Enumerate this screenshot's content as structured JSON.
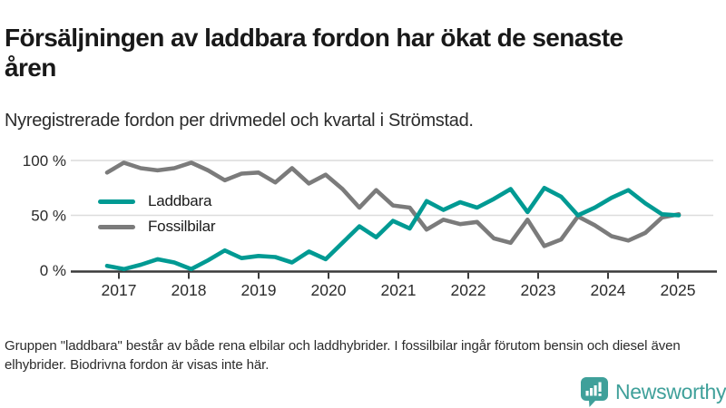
{
  "header": {
    "title": "Försäljningen av laddbara fordon har ökat de senaste åren",
    "subtitle": "Nyregistrerade fordon per drivmedel och kvartal i Strömstad."
  },
  "chart_data": {
    "type": "line",
    "title": "Nyregistrerade fordon per drivmedel och kvartal i Strömstad",
    "xlabel": "",
    "ylabel": "",
    "unit": "percent",
    "ylim": [
      0,
      100
    ],
    "grid": "horizontal-only",
    "legend_position": "inside-top-left",
    "yticks": [
      {
        "value": 100,
        "label": "100 %"
      },
      {
        "value": 50,
        "label": "50 %"
      },
      {
        "value": 0,
        "label": "0 %"
      }
    ],
    "x_tick_labels": [
      "2017",
      "2018",
      "2019",
      "2020",
      "2021",
      "2022",
      "2023",
      "2024",
      "2025"
    ],
    "categories": [
      "2017 Q1",
      "2017 Q2",
      "2017 Q3",
      "2017 Q4",
      "2018 Q1",
      "2018 Q2",
      "2018 Q3",
      "2018 Q4",
      "2019 Q1",
      "2019 Q2",
      "2019 Q3",
      "2019 Q4",
      "2020 Q1",
      "2020 Q2",
      "2020 Q3",
      "2020 Q4",
      "2021 Q1",
      "2021 Q2",
      "2021 Q3",
      "2021 Q4",
      "2022 Q1",
      "2022 Q2",
      "2022 Q3",
      "2022 Q4",
      "2023 Q1",
      "2023 Q2",
      "2023 Q3",
      "2023 Q4",
      "2024 Q1",
      "2024 Q2",
      "2024 Q3",
      "2024 Q4",
      "2025 Q1",
      "2025 Q2",
      "2025 Q3"
    ],
    "series": [
      {
        "name": "Laddbara",
        "color": "#009A93",
        "values": [
          4,
          1,
          5,
          10,
          7,
          1,
          9,
          18,
          11,
          13,
          12,
          7,
          17,
          10,
          25,
          40,
          30,
          45,
          38,
          63,
          55,
          62,
          57,
          65,
          74,
          53,
          75,
          67,
          50,
          57,
          66,
          73,
          61,
          51,
          50
        ]
      },
      {
        "name": "Fossilbilar",
        "color": "#7B7B7B",
        "values": [
          89,
          98,
          93,
          91,
          93,
          98,
          91,
          82,
          88,
          89,
          80,
          93,
          79,
          87,
          74,
          57,
          73,
          59,
          57,
          37,
          46,
          42,
          44,
          29,
          25,
          46,
          22,
          28,
          49,
          41,
          31,
          27,
          34,
          48,
          51
        ]
      }
    ]
  },
  "style": {
    "axis_color": "#3A3A3A",
    "grid_color": "#DCDCDC",
    "tick_label_color": "#2B2B2B"
  },
  "footer": {
    "note": "Gruppen \"laddbara\" består av både rena elbilar och laddhybrider. I fossilbilar ingår förutom bensin och diesel även elhybrider. Biodrivna fordon är visas inte här."
  },
  "logo": {
    "text": "Newsworthy",
    "color": "#3FA09A",
    "icon": "newsworthy-bubble-barchart-icon"
  }
}
